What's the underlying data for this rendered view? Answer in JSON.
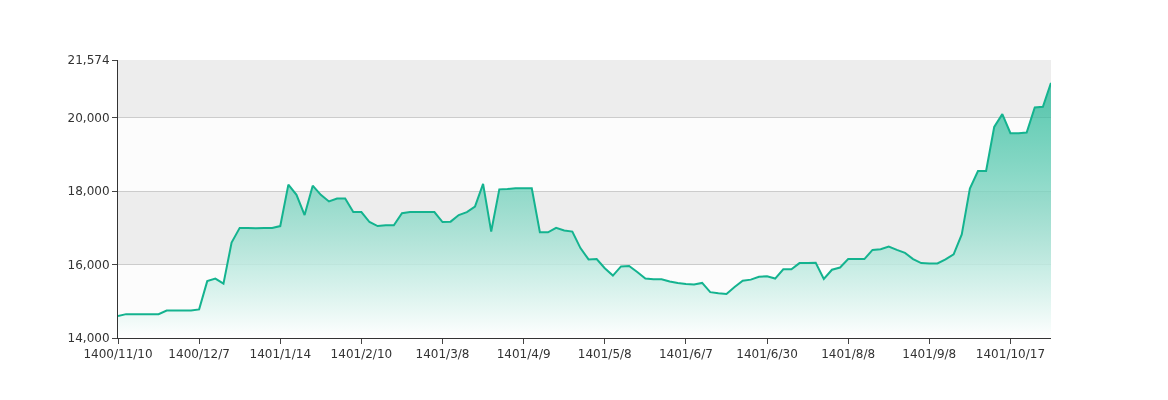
{
  "chart_data": {
    "type": "area",
    "categories": [
      "1400/11/10",
      null,
      null,
      null,
      null,
      null,
      null,
      null,
      null,
      null,
      "1400/12/7",
      null,
      null,
      null,
      null,
      null,
      null,
      null,
      null,
      null,
      "1401/1/14",
      null,
      null,
      null,
      null,
      null,
      null,
      null,
      null,
      null,
      "1401/2/10",
      null,
      null,
      null,
      null,
      null,
      null,
      null,
      null,
      null,
      "1401/3/8",
      null,
      null,
      null,
      null,
      null,
      null,
      null,
      null,
      null,
      "1401/4/9",
      null,
      null,
      null,
      null,
      null,
      null,
      null,
      null,
      null,
      "1401/5/8",
      null,
      null,
      null,
      null,
      null,
      null,
      null,
      null,
      null,
      "1401/6/7",
      null,
      null,
      null,
      null,
      null,
      null,
      null,
      null,
      null,
      "1401/6/30",
      null,
      null,
      null,
      null,
      null,
      null,
      null,
      null,
      null,
      "1401/8/8",
      null,
      null,
      null,
      null,
      null,
      null,
      null,
      null,
      null,
      "1401/9/8",
      null,
      null,
      null,
      null,
      null,
      null,
      null,
      null,
      null,
      "1401/10/17",
      null,
      null,
      null,
      null,
      null
    ],
    "series": [
      {
        "color": "#14b38f",
        "values": [
          14600,
          14650,
          14650,
          14650,
          14650,
          14650,
          14750,
          14750,
          14750,
          14750,
          14780,
          15550,
          15620,
          15480,
          16600,
          17000,
          17000,
          16990,
          17000,
          17000,
          17050,
          18180,
          17900,
          17350,
          18150,
          17900,
          17720,
          17800,
          17800,
          17430,
          17430,
          17160,
          17050,
          17070,
          17070,
          17400,
          17430,
          17430,
          17430,
          17430,
          17160,
          17170,
          17350,
          17430,
          17580,
          18200,
          16900,
          18050,
          18060,
          18080,
          18080,
          18080,
          16880,
          16880,
          17000,
          16930,
          16900,
          16450,
          16140,
          16150,
          15900,
          15700,
          15950,
          15960,
          15800,
          15620,
          15600,
          15600,
          15540,
          15500,
          15470,
          15460,
          15500,
          15250,
          15220,
          15200,
          15390,
          15560,
          15590,
          15670,
          15680,
          15620,
          15870,
          15870,
          16040,
          16040,
          16050,
          15610,
          15860,
          15920,
          16150,
          16150,
          16150,
          16400,
          16420,
          16490,
          16400,
          16320,
          16150,
          16040,
          16030,
          16030,
          16140,
          16280,
          16820,
          18070,
          18550,
          18550,
          19750,
          20100,
          19580,
          19580,
          19600,
          20280,
          20300,
          20950
        ]
      }
    ],
    "ylim": [
      14000,
      21574
    ],
    "yticks": [
      {
        "value": 14000,
        "label": "14,000"
      },
      {
        "value": 16000,
        "label": "16,000"
      },
      {
        "value": 18000,
        "label": "18,000"
      },
      {
        "value": 20000,
        "label": "20,000"
      },
      {
        "value": 21574,
        "label": "21,574"
      }
    ],
    "grid": "y",
    "marker": "none",
    "line_style": "solid"
  }
}
